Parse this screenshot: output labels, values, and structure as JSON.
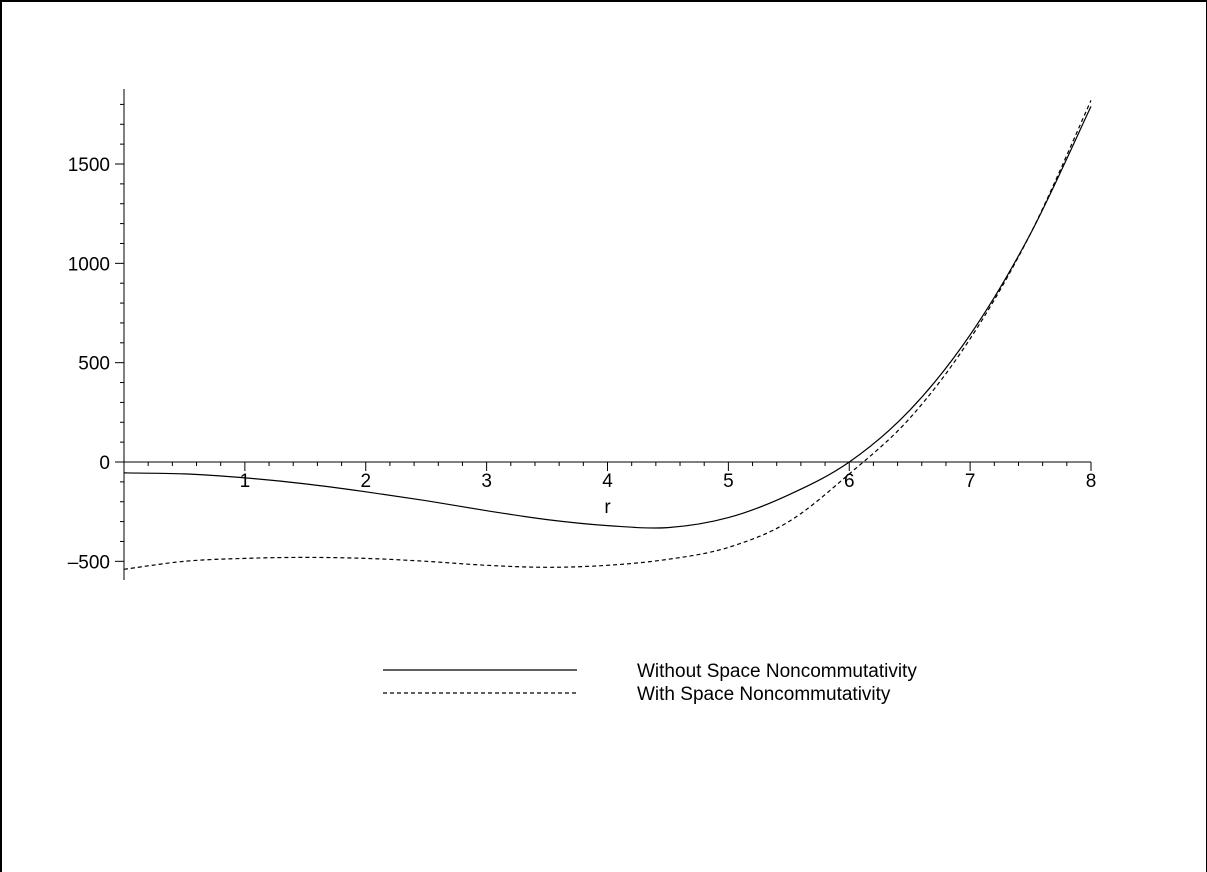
{
  "chart_data": {
    "type": "line",
    "title": "",
    "xlabel": "r",
    "ylabel": "",
    "xlim": [
      0,
      8
    ],
    "ylim": [
      -600,
      1900
    ],
    "x_ticks": [
      1,
      2,
      3,
      4,
      5,
      6,
      7,
      8
    ],
    "y_ticks": [
      -500,
      0,
      500,
      1000,
      1500
    ],
    "x_tick_labels": [
      "1",
      "2",
      "3",
      "4",
      "5",
      "6",
      "7",
      "8"
    ],
    "y_tick_labels": [
      "–500",
      "0",
      "500",
      "1000",
      "1500"
    ],
    "grid": false,
    "legend_position": "bottom-center",
    "x": [
      0,
      0.5,
      1,
      1.5,
      2,
      2.5,
      3,
      3.5,
      4,
      4.5,
      5,
      5.5,
      6,
      6.5,
      7,
      7.5,
      8
    ],
    "series": [
      {
        "name": "Without Space Noncommutativity",
        "style": "solid",
        "color": "#000000",
        "values": [
          -55,
          -60,
          -80,
          -110,
          -150,
          -195,
          -245,
          -290,
          -320,
          -330,
          -280,
          -165,
          0,
          260,
          640,
          1150,
          1790
        ]
      },
      {
        "name": "With Space Noncommutativity",
        "style": "dashed",
        "color": "#000000",
        "values": [
          -540,
          -500,
          -485,
          -480,
          -485,
          -500,
          -520,
          -530,
          -520,
          -490,
          -430,
          -300,
          -60,
          220,
          620,
          1150,
          1820
        ]
      }
    ]
  }
}
